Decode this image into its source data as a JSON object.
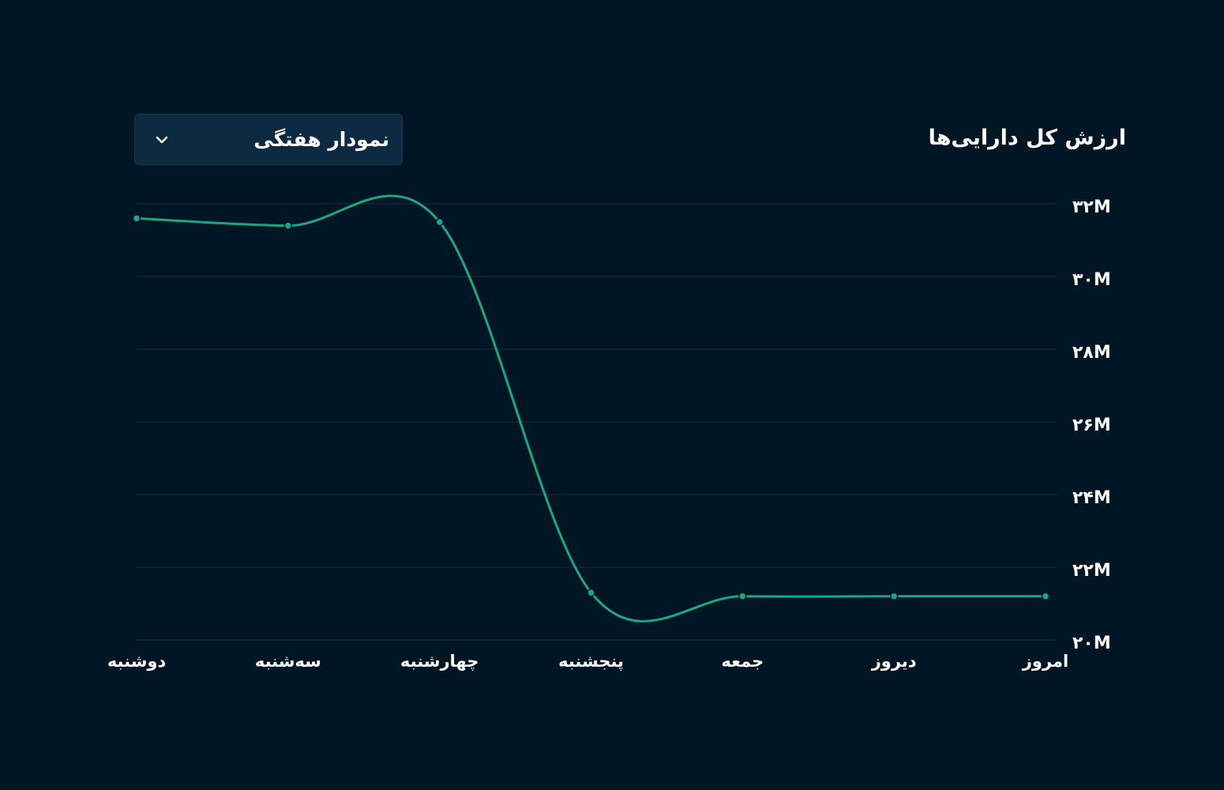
{
  "header": {
    "title": "ارزش کل دارایی‌ها",
    "period_select": {
      "value": "نمودار هفتگی",
      "icon": "chevron-down-icon"
    }
  },
  "colors": {
    "background": "#011625",
    "line": "#1aa883",
    "grid": "#1a2c3a",
    "select_background": "#0d2a41"
  },
  "chart_data": {
    "type": "line",
    "title": "ارزش کل دارایی‌ها",
    "categories": [
      "دوشنبه",
      "سه‌شنبه",
      "چهارشنبه",
      "پنجشنبه",
      "جمعه",
      "دیروز",
      "امروز"
    ],
    "series": [
      {
        "values": [
          31.6,
          31.4,
          31.5,
          21.3,
          21.2,
          21.2,
          21.2
        ]
      }
    ],
    "y_ticks": [
      {
        "value": 32,
        "label": "۳۲M"
      },
      {
        "value": 30,
        "label": "۳۰M"
      },
      {
        "value": 28,
        "label": "۲۸M"
      },
      {
        "value": 26,
        "label": "۲۶M"
      },
      {
        "value": 24,
        "label": "۲۴M"
      },
      {
        "value": 22,
        "label": "۲۲M"
      },
      {
        "value": 20,
        "label": "۲۰M"
      }
    ],
    "ylim": [
      20,
      32
    ],
    "y_axis_side": "right",
    "grid": true,
    "legend": "none",
    "curve": "smooth",
    "markers": true
  }
}
